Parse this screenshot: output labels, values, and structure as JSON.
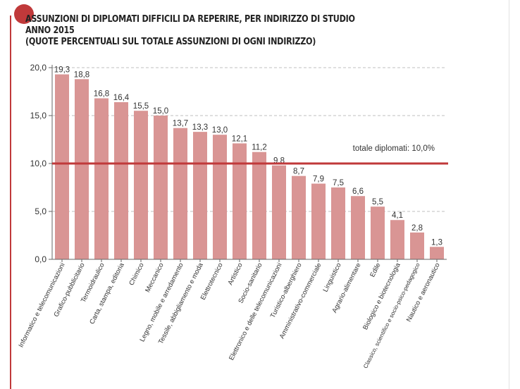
{
  "title": {
    "line1": "ASSUNZIONI DI DIPLOMATI DIFFICILI DA REPERIRE, PER INDIRIZZO DI STUDIO",
    "line2": "ANNO 2015",
    "line3": "(QUOTE PERCENTUALI SUL TOTALE ASSUNZIONI DI OGNI INDIRIZZO)"
  },
  "colors": {
    "bar": "#d99594",
    "reference_line": "#c0393a",
    "accent": "#c0393a",
    "axis_text": "#333333",
    "grid": "#bfbfbf"
  },
  "chart_data": {
    "type": "bar",
    "categories": [
      "Informatico e telecomunicazioni",
      "Grafico-pubblicitario",
      "Termoidraulico",
      "Carta, stampa, editoria",
      "Chimico",
      "Meccanico",
      "Legno, mobile e arredamento",
      "Tessile, abbigliamento e moda",
      "Elettrotecnico",
      "Artistico",
      "Socio-sanitario",
      "Elettronico e delle telecomunicazioni",
      "Turistico-alberghiero",
      "Amministrativo-commerciale",
      "Linguistico",
      "Agrario-alimentare",
      "Edile",
      "Biologico e biotecnologia",
      "Classico, scientifico e socio-psico-pedagogico",
      "Nautico e aeronautico"
    ],
    "values": [
      19.3,
      18.8,
      16.8,
      16.4,
      15.5,
      15.0,
      13.7,
      13.3,
      13.0,
      12.1,
      11.2,
      9.8,
      8.7,
      7.9,
      7.5,
      6.6,
      5.5,
      4.1,
      2.8,
      1.3
    ],
    "value_labels": [
      "19,3",
      "18,8",
      "16,8",
      "16,4",
      "15,5",
      "15,0",
      "13,7",
      "13,3",
      "13,0",
      "12,1",
      "11,2",
      "9,8",
      "8,7",
      "7,9",
      "7,5",
      "6,6",
      "5,5",
      "4,1",
      "2,8",
      "1,3"
    ],
    "ylim": [
      0,
      20
    ],
    "yticks": [
      {
        "value": 0,
        "label": "0,0"
      },
      {
        "value": 5,
        "label": "5,0"
      },
      {
        "value": 10,
        "label": "10,0"
      },
      {
        "value": 15,
        "label": "15,0"
      },
      {
        "value": 20,
        "label": "20,0"
      }
    ],
    "grid": "dashed horizontal",
    "reference_line": {
      "value": 10.0,
      "label": "totale diplomati: 10,0%"
    },
    "xlabel": "",
    "ylabel": ""
  }
}
